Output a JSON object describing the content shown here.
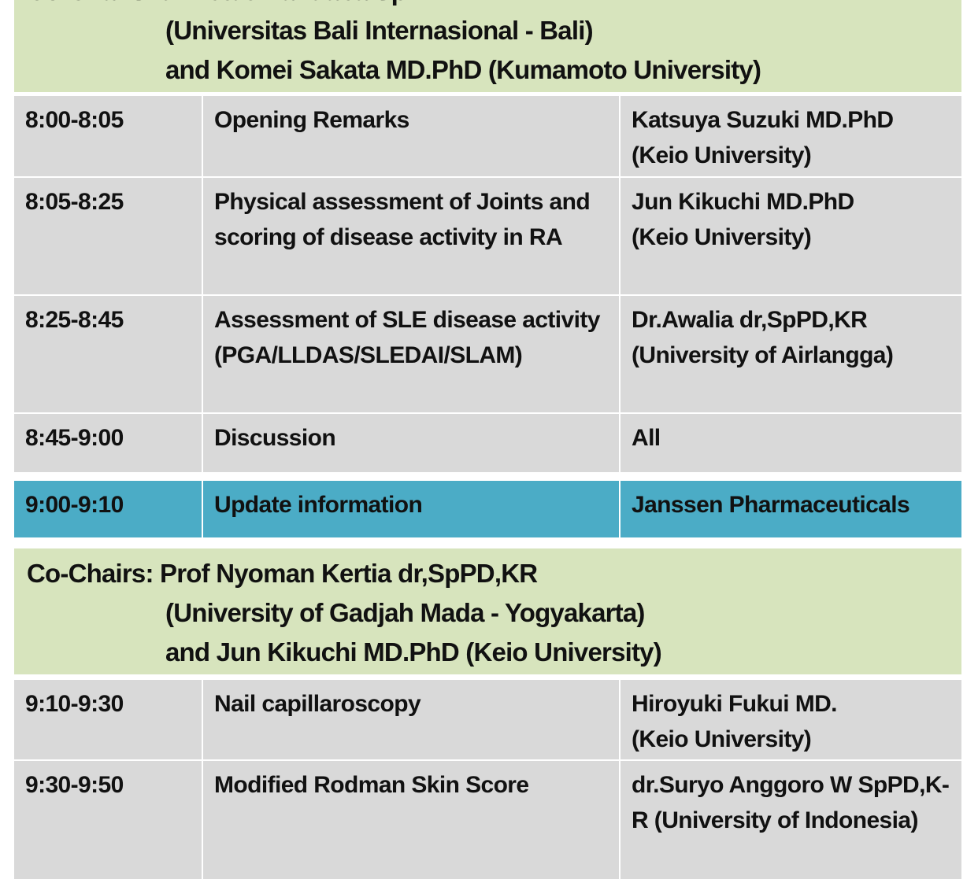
{
  "sessions": [
    {
      "chairs": [
        "Co-Chairs: dr.Ketut Mandaba SpPD-KR",
        "(Universitas Bali Internasional - Bali)",
        "and Komei Sakata MD.PhD (Kumamoto University)"
      ]
    },
    {
      "chairs": [
        "Co-Chairs: Prof Nyoman Kertia dr,SpPD,KR",
        "(University of Gadjah Mada - Yogyakarta)",
        "and Jun Kikuchi MD.PhD (Keio University)"
      ]
    }
  ],
  "rows": [
    {
      "time": "8:00-8:05",
      "title": "Opening Remarks",
      "speaker": "Katsuya Suzuki MD.PhD\n (Keio University)"
    },
    {
      "time": "8:05-8:25",
      "title": "Physical assessment of Joints and scoring of disease activity in RA",
      "speaker": "Jun Kikuchi MD.PhD\n (Keio University)"
    },
    {
      "time": "8:25-8:45",
      "title": "Assessment of SLE disease activity\n(PGA/LLDAS/SLEDAI/SLAM)",
      "speaker": "Dr.Awalia dr,SpPD,KR\n(University of Airlangga)"
    },
    {
      "time": "8:45-9:00",
      "title": "Discussion",
      "speaker": "All"
    },
    {
      "time": "9:00-9:10",
      "title": "Update information",
      "speaker": "Janssen Pharmaceuticals"
    },
    {
      "time": "9:10-9:30",
      "title": "Nail capillaroscopy",
      "speaker": "Hiroyuki Fukui MD.\n (Keio University)"
    },
    {
      "time": "9:30-9:50",
      "title": "Modified Rodman Skin Score",
      "speaker": "dr.Suryo Anggoro W SpPD,K-R (University of Indonesia)"
    }
  ],
  "colors": {
    "chair_bg": "#d7e4bd",
    "row_bg": "#d9d9d9",
    "sponsor_bg": "#4bacc6"
  }
}
